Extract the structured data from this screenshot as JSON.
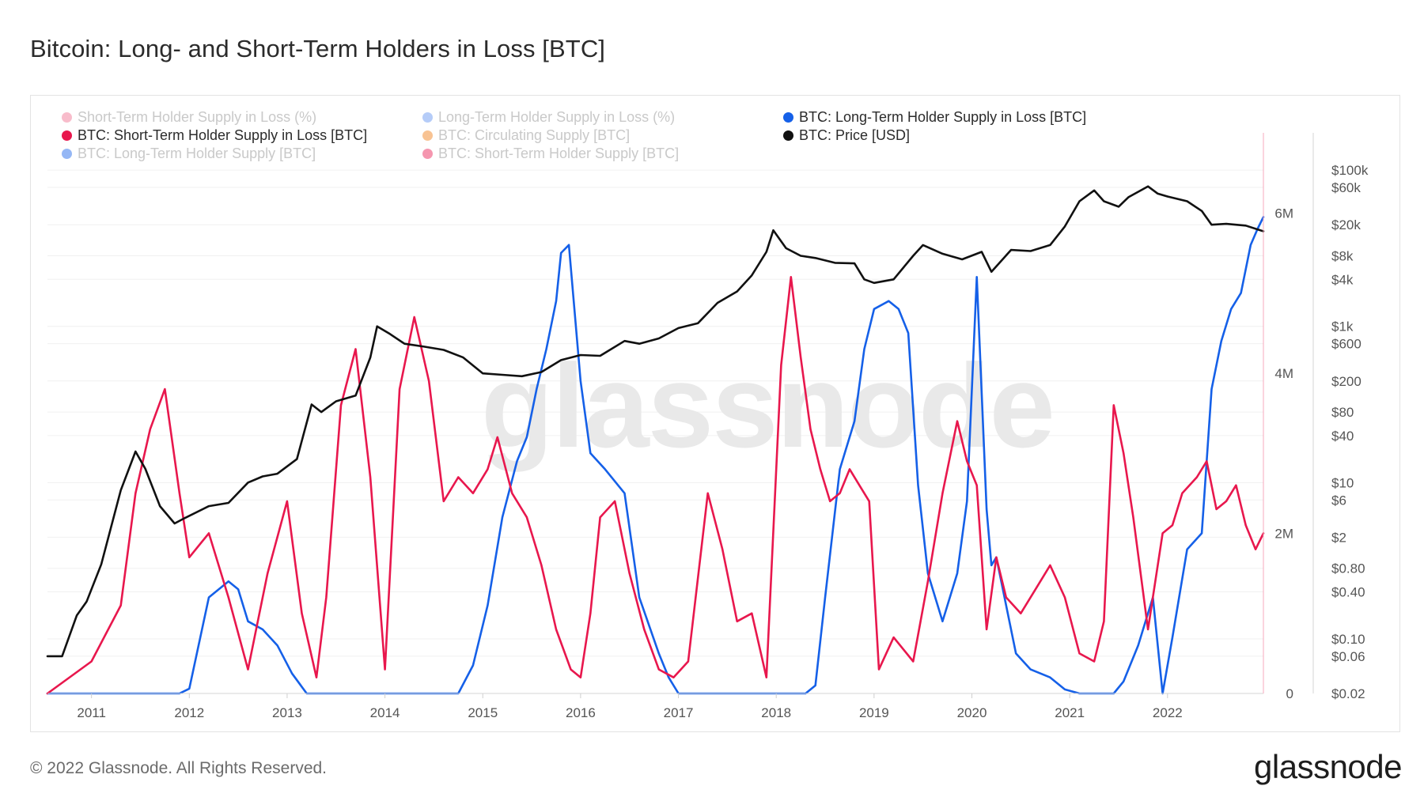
{
  "title": "Bitcoin: Long- and Short-Term Holders in Loss [BTC]",
  "footer": "© 2022 Glassnode. All Rights Reserved.",
  "brand": "glassnode",
  "watermark": "glassnode",
  "legend": [
    {
      "label": "Short-Term Holder Supply in Loss (%)",
      "color": "#f06a8c",
      "active": false
    },
    {
      "label": "Long-Term Holder Supply in Loss (%)",
      "color": "#5b8df0",
      "active": false
    },
    {
      "label": "BTC: Long-Term Holder Supply in Loss [BTC]",
      "color": "#1560e8",
      "active": true
    },
    {
      "label": "BTC: Short-Term Holder Supply in Loss [BTC]",
      "color": "#e8174d",
      "active": true
    },
    {
      "label": "BTC: Circulating Supply [BTC]",
      "color": "#f07a10",
      "active": false
    },
    {
      "label": "BTC: Price [USD]",
      "color": "#111111",
      "active": true
    },
    {
      "label": "BTC: Long-Term Holder Supply [BTC]",
      "color": "#1560e8",
      "active": false
    },
    {
      "label": "BTC: Short-Term Holder Supply [BTC]",
      "color": "#e8174d",
      "active": false
    }
  ],
  "chart_data": {
    "type": "line",
    "title": "Bitcoin: Long- and Short-Term Holders in Loss [BTC]",
    "x_ticks": [
      "2011",
      "2012",
      "2013",
      "2014",
      "2015",
      "2016",
      "2017",
      "2018",
      "2019",
      "2020",
      "2021",
      "2022"
    ],
    "x_range": [
      2010.55,
      2022.98
    ],
    "y_left_ticks": [
      {
        "value": 0,
        "label": "0"
      },
      {
        "value": 2000000,
        "label": "2M"
      },
      {
        "value": 4000000,
        "label": "4M"
      },
      {
        "value": 6000000,
        "label": "6M"
      }
    ],
    "y_left_range": [
      0,
      7000000
    ],
    "y_right_ticks": [
      {
        "value": 0.02,
        "label": "$0.02"
      },
      {
        "value": 0.06,
        "label": "$0.06"
      },
      {
        "value": 0.1,
        "label": "$0.10"
      },
      {
        "value": 0.4,
        "label": "$0.40"
      },
      {
        "value": 0.8,
        "label": "$0.80"
      },
      {
        "value": 2,
        "label": "$2"
      },
      {
        "value": 6,
        "label": "$6"
      },
      {
        "value": 10,
        "label": "$10"
      },
      {
        "value": 40,
        "label": "$40"
      },
      {
        "value": 80,
        "label": "$80"
      },
      {
        "value": 200,
        "label": "$200"
      },
      {
        "value": 600,
        "label": "$600"
      },
      {
        "value": 1000,
        "label": "$1k"
      },
      {
        "value": 4000,
        "label": "$4k"
      },
      {
        "value": 8000,
        "label": "$8k"
      },
      {
        "value": 20000,
        "label": "$20k"
      },
      {
        "value": 60000,
        "label": "$60k"
      },
      {
        "value": 100000,
        "label": "$100k"
      }
    ],
    "y_right_range": [
      0.02,
      300000
    ],
    "y_right_scale": "log",
    "grid": true,
    "legend_position": "top-left",
    "series": [
      {
        "name": "BTC: Price [USD]",
        "color": "#111111",
        "axis": "right",
        "x": [
          2010.55,
          2010.7,
          2010.85,
          2010.95,
          2011.1,
          2011.3,
          2011.45,
          2011.55,
          2011.7,
          2011.85,
          2011.95,
          2012.2,
          2012.4,
          2012.6,
          2012.75,
          2012.9,
          2013.1,
          2013.25,
          2013.35,
          2013.5,
          2013.7,
          2013.85,
          2013.92,
          2014.05,
          2014.2,
          2014.4,
          2014.6,
          2014.8,
          2015.0,
          2015.2,
          2015.4,
          2015.6,
          2015.8,
          2016.0,
          2016.2,
          2016.45,
          2016.6,
          2016.8,
          2017.0,
          2017.2,
          2017.4,
          2017.6,
          2017.75,
          2017.9,
          2017.97,
          2018.1,
          2018.25,
          2018.4,
          2018.6,
          2018.8,
          2018.9,
          2019.0,
          2019.2,
          2019.4,
          2019.5,
          2019.7,
          2019.9,
          2020.1,
          2020.2,
          2020.4,
          2020.6,
          2020.8,
          2020.95,
          2021.1,
          2021.25,
          2021.35,
          2021.5,
          2021.6,
          2021.8,
          2021.9,
          2022.0,
          2022.2,
          2022.35,
          2022.45,
          2022.6,
          2022.8,
          2022.98
        ],
        "values": [
          0.06,
          0.06,
          0.2,
          0.3,
          0.9,
          8,
          25,
          15,
          5,
          3,
          3.5,
          5,
          5.5,
          10,
          12,
          13,
          20,
          100,
          80,
          110,
          130,
          400,
          1000,
          800,
          600,
          550,
          500,
          400,
          250,
          240,
          230,
          260,
          370,
          430,
          420,
          650,
          600,
          700,
          950,
          1100,
          2000,
          2800,
          4500,
          9000,
          17000,
          10000,
          8000,
          7500,
          6500,
          6400,
          4000,
          3600,
          4000,
          8000,
          11000,
          8500,
          7200,
          9000,
          5000,
          9500,
          9200,
          11000,
          19000,
          40000,
          55000,
          40000,
          34000,
          45000,
          62000,
          50000,
          46000,
          40000,
          30000,
          20000,
          20500,
          19500,
          16500
        ]
      },
      {
        "name": "BTC: Long-Term Holder Supply in Loss [BTC]",
        "color": "#1560e8",
        "axis": "left",
        "x": [
          2010.55,
          2011.7,
          2011.9,
          2012.0,
          2012.2,
          2012.4,
          2012.5,
          2012.6,
          2012.75,
          2012.9,
          2013.05,
          2013.2,
          2013.4,
          2013.55,
          2013.7,
          2013.85,
          2014.1,
          2014.25,
          2014.4,
          2014.55,
          2014.75,
          2014.9,
          2015.05,
          2015.2,
          2015.35,
          2015.45,
          2015.55,
          2015.65,
          2015.75,
          2015.8,
          2015.88,
          2016.0,
          2016.1,
          2016.25,
          2016.45,
          2016.6,
          2016.8,
          2016.9,
          2017.0,
          2017.2,
          2017.4,
          2017.6,
          2017.8,
          2018.0,
          2018.2,
          2018.3,
          2018.4,
          2018.5,
          2018.65,
          2018.8,
          2018.9,
          2019.0,
          2019.15,
          2019.25,
          2019.35,
          2019.45,
          2019.55,
          2019.7,
          2019.85,
          2019.95,
          2020.05,
          2020.15,
          2020.2,
          2020.25,
          2020.35,
          2020.45,
          2020.6,
          2020.8,
          2020.95,
          2021.1,
          2021.3,
          2021.45,
          2021.55,
          2021.7,
          2021.85,
          2021.95,
          2022.05,
          2022.2,
          2022.35,
          2022.45,
          2022.55,
          2022.65,
          2022.75,
          2022.85,
          2022.92,
          2022.98
        ],
        "values": [
          0,
          0,
          0,
          60000,
          1200000,
          1400000,
          1300000,
          900000,
          800000,
          600000,
          250000,
          0,
          0,
          0,
          0,
          0,
          0,
          0,
          0,
          0,
          0,
          350000,
          1100000,
          2200000,
          2900000,
          3200000,
          3800000,
          4300000,
          4900000,
          5500000,
          5600000,
          3900000,
          3000000,
          2800000,
          2500000,
          1200000,
          500000,
          200000,
          0,
          0,
          0,
          0,
          0,
          0,
          0,
          0,
          100000,
          1200000,
          2800000,
          3400000,
          4300000,
          4800000,
          4900000,
          4800000,
          4500000,
          2600000,
          1500000,
          900000,
          1500000,
          2400000,
          5200000,
          2300000,
          1600000,
          1700000,
          1100000,
          500000,
          300000,
          200000,
          50000,
          0,
          0,
          0,
          150000,
          600000,
          1200000,
          0,
          700000,
          1800000,
          2000000,
          3800000,
          4400000,
          4800000,
          5000000,
          5600000,
          5800000,
          5950000
        ]
      },
      {
        "name": "BTC: Short-Term Holder Supply in Loss [BTC]",
        "color": "#e8174d",
        "axis": "left",
        "x": [
          2010.55,
          2011.0,
          2011.3,
          2011.45,
          2011.6,
          2011.75,
          2011.9,
          2012.0,
          2012.2,
          2012.4,
          2012.6,
          2012.8,
          2013.0,
          2013.15,
          2013.3,
          2013.4,
          2013.55,
          2013.7,
          2013.85,
          2014.0,
          2014.15,
          2014.3,
          2014.45,
          2014.6,
          2014.75,
          2014.9,
          2015.05,
          2015.15,
          2015.3,
          2015.45,
          2015.6,
          2015.75,
          2015.9,
          2016.0,
          2016.1,
          2016.2,
          2016.35,
          2016.5,
          2016.65,
          2016.8,
          2016.95,
          2017.1,
          2017.3,
          2017.45,
          2017.6,
          2017.75,
          2017.9,
          2018.05,
          2018.15,
          2018.25,
          2018.35,
          2018.45,
          2018.55,
          2018.65,
          2018.75,
          2018.85,
          2018.95,
          2019.05,
          2019.2,
          2019.4,
          2019.55,
          2019.7,
          2019.85,
          2019.95,
          2020.05,
          2020.15,
          2020.25,
          2020.35,
          2020.5,
          2020.65,
          2020.8,
          2020.95,
          2021.1,
          2021.25,
          2021.35,
          2021.45,
          2021.55,
          2021.65,
          2021.8,
          2021.95,
          2022.05,
          2022.15,
          2022.3,
          2022.4,
          2022.5,
          2022.6,
          2022.7,
          2022.8,
          2022.9,
          2022.98
        ],
        "values": [
          0,
          400000,
          1100000,
          2500000,
          3300000,
          3800000,
          2500000,
          1700000,
          2000000,
          1200000,
          300000,
          1500000,
          2400000,
          1000000,
          200000,
          1200000,
          3600000,
          4300000,
          2700000,
          300000,
          3800000,
          4700000,
          3900000,
          2400000,
          2700000,
          2500000,
          2800000,
          3200000,
          2500000,
          2200000,
          1600000,
          800000,
          300000,
          200000,
          1000000,
          2200000,
          2400000,
          1500000,
          800000,
          300000,
          200000,
          400000,
          2500000,
          1800000,
          900000,
          1000000,
          200000,
          4100000,
          5200000,
          4200000,
          3300000,
          2800000,
          2400000,
          2500000,
          2800000,
          2600000,
          2400000,
          300000,
          700000,
          400000,
          1400000,
          2500000,
          3400000,
          2900000,
          2600000,
          800000,
          1700000,
          1200000,
          1000000,
          1300000,
          1600000,
          1200000,
          500000,
          400000,
          900000,
          3600000,
          3000000,
          2200000,
          800000,
          2000000,
          2100000,
          2500000,
          2700000,
          2900000,
          2300000,
          2400000,
          2600000,
          2100000,
          1800000,
          2000000
        ]
      }
    ]
  }
}
